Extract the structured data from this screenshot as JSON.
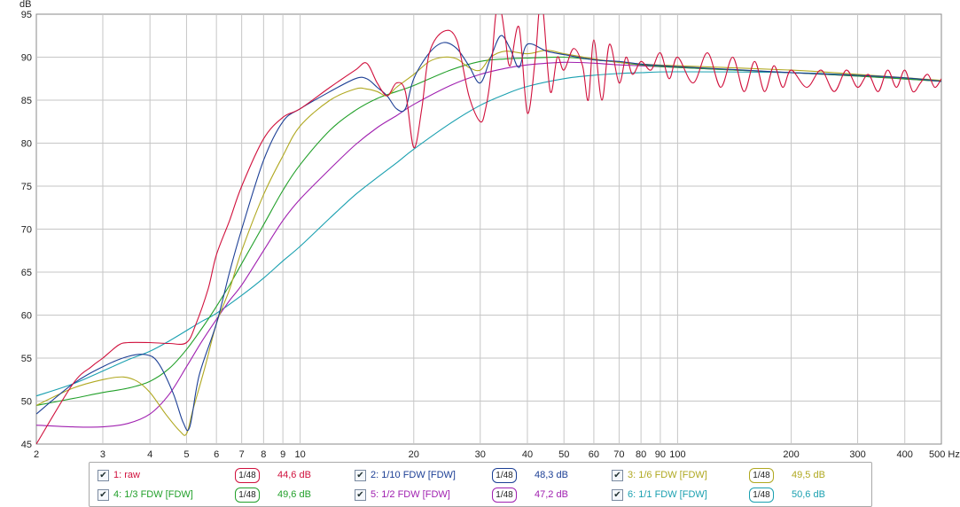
{
  "chart_data": {
    "type": "line",
    "title": "",
    "xlabel": "Hz",
    "ylabel": "dB",
    "xscale": "log",
    "xlim": [
      2,
      500
    ],
    "ylim": [
      45,
      95
    ],
    "grid": true,
    "x_ticks": [
      "2",
      "3",
      "4",
      "5",
      "6",
      "7",
      "8",
      "9",
      "10",
      "20",
      "30",
      "40",
      "50",
      "60",
      "70",
      "80",
      "90",
      "100",
      "200",
      "300",
      "400",
      "500 Hz"
    ],
    "y_ticks": [
      "95",
      "90",
      "85",
      "80",
      "75",
      "70",
      "65",
      "60",
      "55",
      "50",
      "45"
    ],
    "legend_placement": "bottom",
    "series": [
      {
        "name": "1: raw",
        "color": "#d0103c",
        "smoothing": "1/48",
        "level": "44,6 dB",
        "x": [
          2,
          2.5,
          2.8,
          3,
          3.3,
          3.5,
          4,
          4.5,
          5,
          5.3,
          5.7,
          6,
          6.5,
          7,
          8,
          9,
          10,
          12,
          14,
          15,
          16,
          17,
          18,
          19,
          20,
          21,
          22,
          24,
          26,
          28,
          30,
          31,
          32,
          33,
          34,
          35,
          36,
          38,
          40,
          42,
          43,
          44,
          46,
          48,
          50,
          53,
          56,
          58,
          60,
          63,
          66,
          70,
          73,
          76,
          80,
          85,
          90,
          95,
          100,
          110,
          120,
          130,
          140,
          150,
          160,
          170,
          180,
          190,
          200,
          220,
          240,
          260,
          280,
          300,
          320,
          340,
          360,
          380,
          400,
          420,
          440,
          460,
          480,
          500
        ],
        "y": [
          45,
          52,
          54,
          55,
          56.5,
          56.8,
          56.8,
          56.7,
          56.8,
          59,
          63,
          67,
          71,
          75,
          80.5,
          83,
          84,
          86.5,
          88.5,
          89.3,
          87,
          85.5,
          87,
          86,
          79.5,
          84,
          90.5,
          93,
          92,
          85.5,
          82.5,
          84,
          88,
          95,
          95.5,
          92,
          89,
          93.5,
          83.5,
          90,
          95.5,
          95.5,
          86,
          90,
          88.5,
          91,
          89,
          85,
          92,
          85,
          91.5,
          87,
          90,
          88,
          89.5,
          88.5,
          90.5,
          87.5,
          90,
          87,
          90.5,
          86.5,
          90,
          86,
          89.5,
          86,
          89,
          86.5,
          88.5,
          86.5,
          88.5,
          86,
          88.5,
          86.5,
          88,
          86,
          88.5,
          86.5,
          88.5,
          86,
          87,
          88,
          86.5,
          87.5
        ]
      },
      {
        "name": "2: 1/10 FDW [FDW]",
        "color": "#1c3f95",
        "smoothing": "1/48",
        "level": "48,3 dB",
        "x": [
          2,
          2.5,
          3,
          3.5,
          3.9,
          4.2,
          4.6,
          4.9,
          5.1,
          5.4,
          6,
          6.5,
          7,
          8,
          9,
          10,
          12,
          14,
          15,
          16,
          17,
          18,
          19,
          20,
          22,
          24,
          26,
          28,
          30,
          32,
          34,
          36,
          38,
          40,
          45,
          50,
          60,
          70,
          80,
          100,
          150,
          200,
          300,
          400,
          500
        ],
        "y": [
          48.5,
          52,
          54,
          55.2,
          55.4,
          54.5,
          51,
          47.5,
          47,
          53,
          59,
          65,
          70,
          78,
          82.5,
          84,
          86,
          87.5,
          87.5,
          86.5,
          85.5,
          84,
          84,
          87.5,
          90.5,
          91.7,
          91,
          89,
          87,
          90,
          92.5,
          91,
          88.8,
          91.5,
          90.7,
          90.3,
          89.7,
          89.5,
          89.2,
          88.9,
          88.5,
          88.2,
          87.9,
          87.6,
          87.2
        ]
      },
      {
        "name": "3: 1/6 FDW [FDW]",
        "color": "#b0a820",
        "smoothing": "1/48",
        "level": "49,5 dB",
        "x": [
          2,
          2.5,
          3,
          3.4,
          3.7,
          4,
          4.4,
          4.8,
          5,
          5.2,
          5.6,
          6,
          6.5,
          7,
          8,
          9,
          10,
          12,
          14,
          15,
          16,
          17,
          18,
          20,
          22,
          24,
          26,
          28,
          30,
          32,
          35,
          40,
          45,
          50,
          60,
          70,
          80,
          100,
          200,
          300,
          500
        ],
        "y": [
          49.5,
          51.5,
          52.5,
          52.8,
          52.3,
          51,
          48.5,
          46.5,
          46.2,
          49,
          54,
          59,
          63,
          67.5,
          74,
          78.5,
          82,
          85,
          86.3,
          86.3,
          86,
          85.5,
          86.5,
          88,
          89.5,
          90,
          89.8,
          88.8,
          88.5,
          90,
          90.7,
          90.4,
          90.8,
          90.4,
          89.8,
          89.4,
          89.2,
          89,
          88.5,
          88,
          87.3
        ]
      },
      {
        "name": "4: 1/3 FDW [FDW]",
        "color": "#22a02a",
        "smoothing": "1/48",
        "level": "49,6 dB",
        "x": [
          2,
          2.5,
          3,
          3.5,
          4,
          4.5,
          5,
          5.5,
          6,
          6.5,
          7,
          8,
          9,
          10,
          12,
          14,
          16,
          18,
          20,
          25,
          30,
          35,
          40,
          50,
          60,
          70,
          80,
          100,
          200,
          300,
          500
        ],
        "y": [
          49.5,
          50.3,
          51,
          51.5,
          52.3,
          53.8,
          56,
          58.5,
          61,
          63.5,
          66,
          70.5,
          74.5,
          77.5,
          81.5,
          83.8,
          85.2,
          86,
          86.7,
          88.5,
          89.5,
          89.8,
          89.9,
          90,
          89.7,
          89.4,
          89.1,
          88.8,
          88.2,
          87.8,
          87.2
        ]
      },
      {
        "name": "5: 1/2 FDW [FDW]",
        "color": "#a020b0",
        "smoothing": "1/48",
        "level": "47,2 dB",
        "x": [
          2,
          2.5,
          3,
          3.5,
          4,
          4.5,
          5,
          5.5,
          6,
          6.5,
          7,
          8,
          9,
          10,
          12,
          14,
          16,
          18,
          20,
          25,
          30,
          35,
          40,
          50,
          60,
          70,
          80,
          100,
          200,
          300,
          500
        ],
        "y": [
          47.2,
          47,
          47,
          47.4,
          48.5,
          50.8,
          54,
          57,
          59.5,
          61.7,
          63.5,
          67.5,
          71,
          73.5,
          77,
          79.8,
          81.8,
          83.2,
          84.5,
          86.7,
          88,
          88.7,
          89.1,
          89.4,
          89.3,
          89.1,
          89,
          88.8,
          88.2,
          87.8,
          87.2
        ]
      },
      {
        "name": "6: 1/1 FDW [FDW]",
        "color": "#1aa0b0",
        "smoothing": "1/48",
        "level": "50,6 dB",
        "x": [
          2,
          2.5,
          3,
          3.5,
          4,
          4.5,
          5,
          5.5,
          6,
          7,
          8,
          9,
          10,
          12,
          14,
          16,
          18,
          20,
          25,
          30,
          35,
          40,
          50,
          60,
          70,
          80,
          100,
          200,
          300,
          500
        ],
        "y": [
          50.6,
          52,
          53.5,
          54.8,
          55.8,
          57,
          58.2,
          59.3,
          60.2,
          62.3,
          64.3,
          66.3,
          68,
          71.3,
          74,
          76,
          77.7,
          79.3,
          82.3,
          84.4,
          85.7,
          86.6,
          87.5,
          87.9,
          88.1,
          88.2,
          88.3,
          88.2,
          87.9,
          87.2
        ]
      }
    ]
  }
}
